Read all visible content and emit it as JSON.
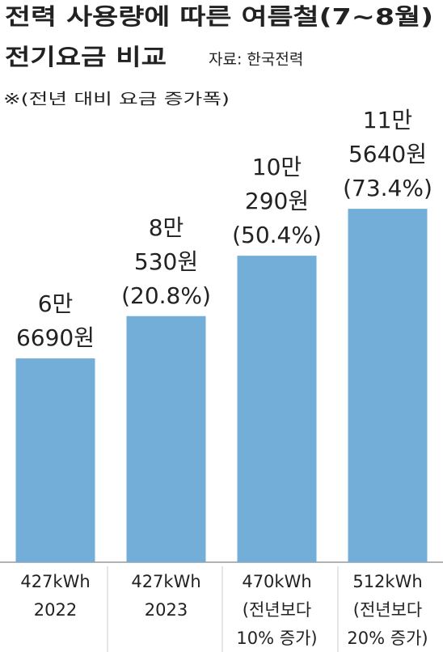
{
  "chart_data": {
    "type": "bar",
    "title": "전력 사용량에 따른 여름철(7~8월)",
    "title_line2": "전기요금 비교",
    "source": "자료: 한국전력",
    "subtitle": "※(전년 대비 요금 증가폭)",
    "categories": [
      [
        "427kWh",
        "2022"
      ],
      [
        "427kWh",
        "2023"
      ],
      [
        "470kWh",
        "(전년보다",
        "10% 증가)"
      ],
      [
        "512kWh",
        "(전년보다",
        "20% 증가)"
      ]
    ],
    "values": [
      66690,
      80530,
      100290,
      115640
    ],
    "value_labels": [
      [
        "6만",
        "6690원"
      ],
      [
        "8만",
        "530원"
      ],
      [
        "10만",
        "290원"
      ],
      [
        "11만",
        "5640원"
      ]
    ],
    "changes": [
      null,
      20.8,
      50.4,
      73.4
    ],
    "change_labels": [
      null,
      "(20.8%)",
      "(50.4%)",
      "(73.4%)"
    ],
    "color": "#72aed8",
    "ylim": [
      0,
      180000
    ]
  }
}
